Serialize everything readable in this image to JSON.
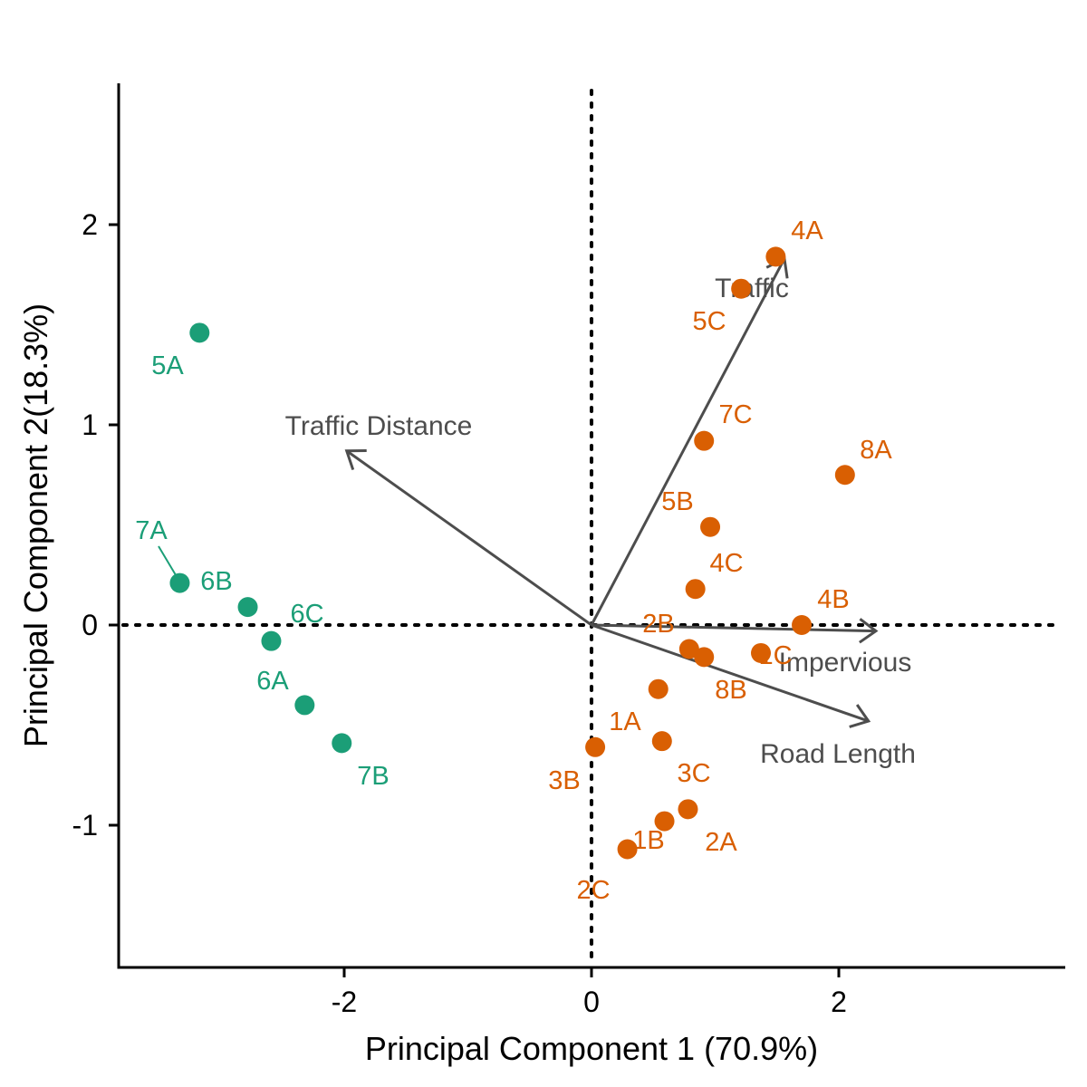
{
  "chart_data": {
    "type": "scatter",
    "xlabel": "Principal Component 1 (70.9%)",
    "ylabel": "Principal Component 2(18.3%)",
    "xlim": [
      -3.8,
      3.8
    ],
    "ylim": [
      -1.6,
      2.7
    ],
    "xticks": [
      -2,
      0,
      2
    ],
    "yticks": [
      -1,
      0,
      1,
      2
    ],
    "xtick_labels": [
      "-2",
      "0",
      "2"
    ],
    "ytick_labels": [
      "-1",
      "0",
      "1",
      "2"
    ],
    "reference_lines": {
      "x": 0,
      "y": 0,
      "style": "dotted"
    },
    "grid": false,
    "legend": "none",
    "colors": {
      "group1": "#1b9e77",
      "group2": "#d95f02",
      "vectors": "#4d4d4d"
    },
    "series": [
      {
        "color": "#1b9e77",
        "points": [
          {
            "label": "5A",
            "x": -3.17,
            "y": 1.46
          },
          {
            "label": "7A",
            "x": -3.33,
            "y": 0.21
          },
          {
            "label": "6B",
            "x": -2.78,
            "y": 0.09
          },
          {
            "label": "6C",
            "x": -2.59,
            "y": -0.08
          },
          {
            "label": "6A",
            "x": -2.32,
            "y": -0.4
          },
          {
            "label": "7B",
            "x": -2.02,
            "y": -0.59
          }
        ]
      },
      {
        "color": "#d95f02",
        "points": [
          {
            "label": "4A",
            "x": 1.49,
            "y": 1.84
          },
          {
            "label": "5C",
            "x": 1.21,
            "y": 1.68
          },
          {
            "label": "7C",
            "x": 0.91,
            "y": 0.92
          },
          {
            "label": "8A",
            "x": 2.05,
            "y": 0.75
          },
          {
            "label": "5B",
            "x": 0.96,
            "y": 0.49
          },
          {
            "label": "4C",
            "x": 0.84,
            "y": 0.18
          },
          {
            "label": "4B",
            "x": 1.7,
            "y": 0.0
          },
          {
            "label": "2B",
            "x": 0.79,
            "y": -0.12
          },
          {
            "label": "8B",
            "x": 0.91,
            "y": -0.16
          },
          {
            "label": "1C",
            "x": 1.37,
            "y": -0.14
          },
          {
            "label": "1A",
            "x": 0.54,
            "y": -0.32
          },
          {
            "label": "3C",
            "x": 0.57,
            "y": -0.58
          },
          {
            "label": "3B",
            "x": 0.03,
            "y": -0.61
          },
          {
            "label": "2A",
            "x": 0.78,
            "y": -0.92
          },
          {
            "label": "1B",
            "x": 0.59,
            "y": -0.98
          },
          {
            "label": "2C",
            "x": 0.29,
            "y": -1.12
          }
        ]
      }
    ],
    "vectors": [
      {
        "label": "Traffic",
        "x": 1.56,
        "y": 1.83
      },
      {
        "label": "Traffic Distance",
        "x": -1.98,
        "y": 0.87
      },
      {
        "label": "Impervious",
        "x": 2.3,
        "y": -0.03
      },
      {
        "label": "Road Length",
        "x": 2.24,
        "y": -0.48
      }
    ]
  }
}
